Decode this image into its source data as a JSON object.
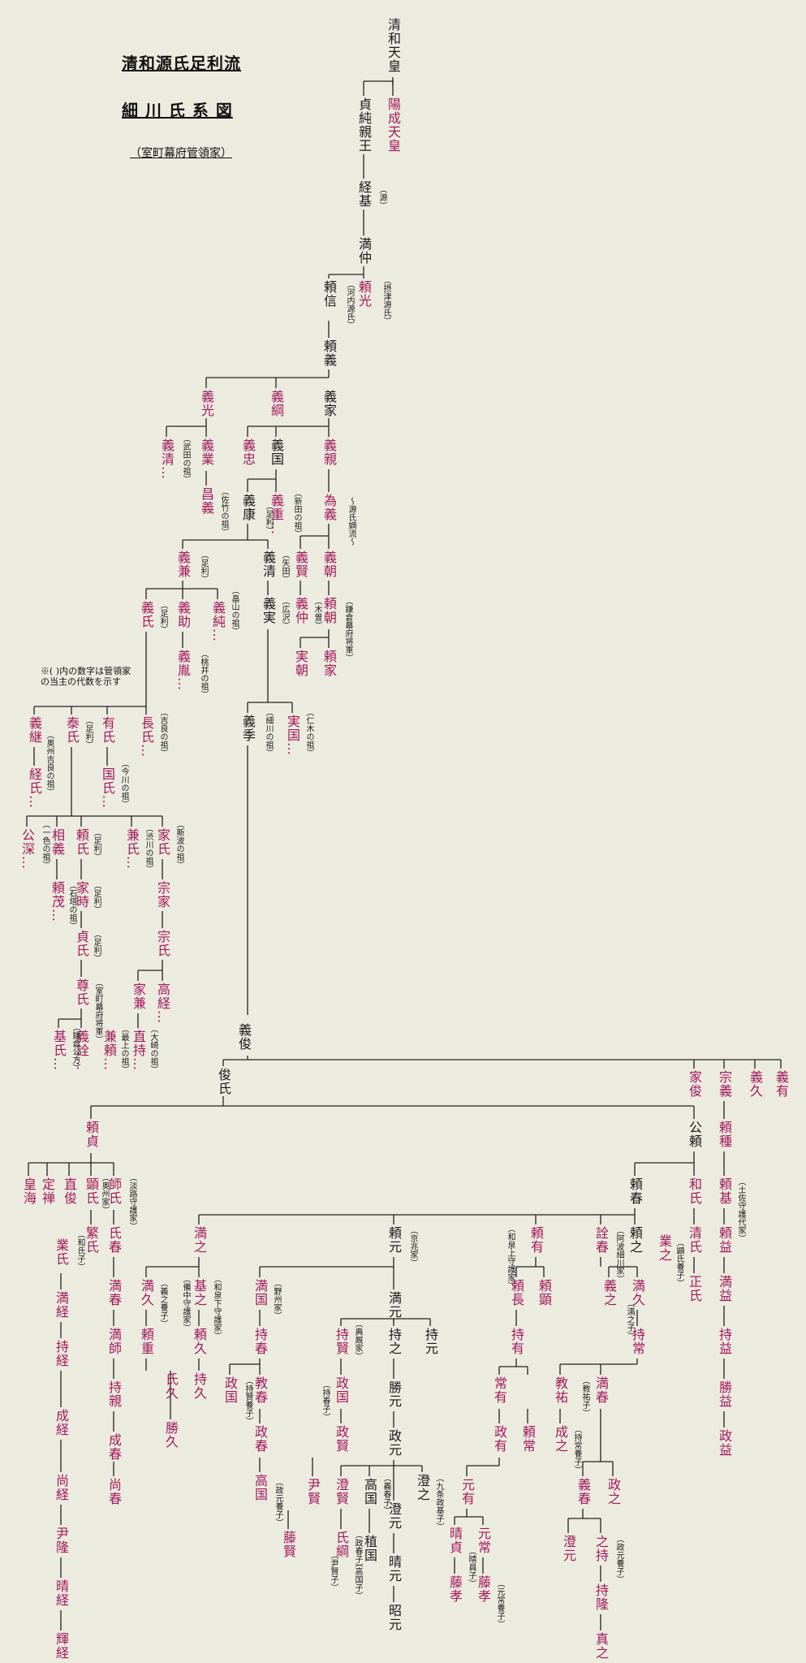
{
  "header": {
    "line1": "清和源氏足利流",
    "line2": "細 川 氏 系 図",
    "line3": "（室町幕府管領家）",
    "note_line1": "※( )内の数字は管領家",
    "note_line2": "の当主の代数を示す"
  },
  "colors": {
    "background": "#ecebdf",
    "line": "#222222",
    "red": "#a3195b",
    "black": "#1a1a1a"
  },
  "nodes": [
    {
      "id": "seiwa",
      "text": "清和天皇",
      "c": "c-main"
    },
    {
      "id": "yozei",
      "text": "陽成天皇",
      "c": "c-red"
    },
    {
      "id": "sadazumi",
      "text": "貞純親王",
      "c": "c-main"
    },
    {
      "id": "tsunemoto",
      "text": "経基",
      "c": "c-main"
    },
    {
      "id": "mitsunaka",
      "text": "満仲",
      "c": "c-main"
    },
    {
      "id": "yorimitsu",
      "text": "頼光",
      "c": "c-red"
    },
    {
      "id": "yorinobu",
      "text": "頼信",
      "c": "c-main"
    },
    {
      "id": "yoriyoshi",
      "text": "頼義",
      "c": "c-main"
    },
    {
      "id": "yoshimitsu",
      "text": "義光",
      "c": "c-red"
    },
    {
      "id": "yoshitsuna",
      "text": "義綱",
      "c": "c-red"
    },
    {
      "id": "yoshiie",
      "text": "義家",
      "c": "c-main"
    },
    {
      "id": "yoshikiyo_t",
      "text": "義清…",
      "c": "c-red"
    },
    {
      "id": "yoshinari",
      "text": "義業",
      "c": "c-red"
    },
    {
      "id": "masayoshi",
      "text": "昌義",
      "c": "c-red"
    },
    {
      "id": "yoshitada",
      "text": "義忠",
      "c": "c-red"
    },
    {
      "id": "yoshikuni",
      "text": "義国",
      "c": "c-main"
    },
    {
      "id": "yoshichika",
      "text": "義親",
      "c": "c-red"
    },
    {
      "id": "tameyoshi",
      "text": "為義",
      "c": "c-red"
    },
    {
      "id": "yoshiyasu",
      "text": "義康",
      "c": "c-main"
    },
    {
      "id": "yoshishige",
      "text": "義重…",
      "c": "c-red"
    },
    {
      "id": "yoshitomo",
      "text": "義朝",
      "c": "c-red"
    },
    {
      "id": "yoshikata",
      "text": "義賢",
      "c": "c-red"
    },
    {
      "id": "yoshikane",
      "text": "義兼",
      "c": "c-red"
    },
    {
      "id": "yoshikiyo",
      "text": "義清",
      "c": "c-main"
    },
    {
      "id": "yoshinaka",
      "text": "義仲",
      "c": "c-red"
    },
    {
      "id": "yoritomo",
      "text": "頼朝",
      "c": "c-red"
    },
    {
      "id": "yoriie",
      "text": "頼家",
      "c": "c-red"
    },
    {
      "id": "sanetomo",
      "text": "実朝",
      "c": "c-red"
    },
    {
      "id": "yoshizane",
      "text": "義実",
      "c": "c-main"
    },
    {
      "id": "yoshiuji",
      "text": "義氏",
      "c": "c-red"
    },
    {
      "id": "yoshisuke",
      "text": "義助",
      "c": "c-red"
    },
    {
      "id": "yoshizumi",
      "text": "義純…",
      "c": "c-red"
    },
    {
      "id": "yoshinori",
      "text": "義胤…",
      "c": "c-red"
    },
    {
      "id": "yoshisue",
      "text": "義季",
      "c": "c-main"
    },
    {
      "id": "sanekuni",
      "text": "実国…",
      "c": "c-red"
    },
    {
      "id": "yoshitsugu",
      "text": "義継",
      "c": "c-red"
    },
    {
      "id": "yasuuji",
      "text": "泰氏",
      "c": "c-red"
    },
    {
      "id": "ariuji",
      "text": "有氏",
      "c": "c-red"
    },
    {
      "id": "osauji",
      "text": "長氏…",
      "c": "c-red"
    },
    {
      "id": "tsuneuji",
      "text": "経氏…",
      "c": "c-red"
    },
    {
      "id": "kuniuji",
      "text": "国氏…",
      "c": "c-red"
    },
    {
      "id": "kofuka",
      "text": "公深…",
      "c": "c-red"
    },
    {
      "id": "tomoyoshi",
      "text": "相義",
      "c": "c-red"
    },
    {
      "id": "yoriuji",
      "text": "頼氏",
      "c": "c-red"
    },
    {
      "id": "kenuji",
      "text": "兼氏…",
      "c": "c-red"
    },
    {
      "id": "ieuji",
      "text": "家氏",
      "c": "c-red"
    },
    {
      "id": "yorishige",
      "text": "頼茂…",
      "c": "c-red"
    },
    {
      "id": "ietoki",
      "text": "家時",
      "c": "c-red"
    },
    {
      "id": "muneie",
      "text": "宗家",
      "c": "c-red"
    },
    {
      "id": "sadauji",
      "text": "貞氏",
      "c": "c-red"
    },
    {
      "id": "muneuji",
      "text": "宗氏",
      "c": "c-red"
    },
    {
      "id": "takauji",
      "text": "尊氏",
      "c": "c-red"
    },
    {
      "id": "ieyoshi",
      "text": "家兼",
      "c": "c-red"
    },
    {
      "id": "takatsune",
      "text": "高経…",
      "c": "c-red"
    },
    {
      "id": "motouji",
      "text": "基氏…",
      "c": "c-red"
    },
    {
      "id": "yoshiakira",
      "text": "義詮…",
      "c": "c-red"
    },
    {
      "id": "kaneyori",
      "text": "兼頼…",
      "c": "c-red"
    },
    {
      "id": "naomochi",
      "text": "直持…",
      "c": "c-red"
    },
    {
      "id": "yoshitoshi",
      "text": "義俊",
      "c": "c-main"
    },
    {
      "id": "toshiuji",
      "text": "俊氏",
      "c": "c-main"
    },
    {
      "id": "ietoshi",
      "text": "家俊",
      "c": "c-red"
    },
    {
      "id": "muneyoshi",
      "text": "宗義",
      "c": "c-red"
    },
    {
      "id": "yoshihisa",
      "text": "義久",
      "c": "c-red"
    },
    {
      "id": "yoshiari",
      "text": "義有",
      "c": "c-red"
    },
    {
      "id": "yorisada",
      "text": "頼貞",
      "c": "c-red"
    },
    {
      "id": "kimiyori",
      "text": "公頼",
      "c": "c-main"
    },
    {
      "id": "yoritane",
      "text": "頼種",
      "c": "c-red"
    },
    {
      "id": "kokai",
      "text": "皇海",
      "c": "c-red"
    },
    {
      "id": "jozen",
      "text": "定禅",
      "c": "c-red"
    },
    {
      "id": "naotoshi",
      "text": "直俊",
      "c": "c-red"
    },
    {
      "id": "akiuji",
      "text": "顕氏",
      "c": "c-red"
    },
    {
      "id": "moroushi",
      "text": "師氏",
      "c": "c-red"
    },
    {
      "id": "yoriharu",
      "text": "頼春",
      "c": "c-main"
    },
    {
      "id": "kazuuji",
      "text": "和氏",
      "c": "c-red"
    },
    {
      "id": "yorimoto_t",
      "text": "頼基",
      "c": "c-red"
    },
    {
      "id": "shigeuji",
      "text": "繁氏",
      "c": "c-red"
    },
    {
      "id": "ujiharu",
      "text": "氏春",
      "c": "c-red"
    },
    {
      "id": "narauji",
      "text": "業氏",
      "c": "c-red"
    },
    {
      "id": "kiyouji",
      "text": "清氏",
      "c": "c-red"
    },
    {
      "id": "masauji",
      "text": "正氏",
      "c": "c-red"
    },
    {
      "id": "yorimasu",
      "text": "頼益",
      "c": "c-red"
    },
    {
      "id": "mitsuyuki",
      "text": "満之",
      "c": "c-red"
    },
    {
      "id": "yorimoto",
      "text": "頼元",
      "c": "c-main"
    },
    {
      "id": "yoriari",
      "text": "頼有",
      "c": "c-red"
    },
    {
      "id": "akiharu",
      "text": "詮春",
      "c": "c-red"
    },
    {
      "id": "yoriyuki",
      "text": "頼之",
      "c": "c-main"
    },
    {
      "id": "gyoshi",
      "text": "業之",
      "c": "c-red"
    },
    {
      "id": "mitsumasu",
      "text": "満益",
      "c": "c-red"
    },
    {
      "id": "mitsuhisa_a",
      "text": "満久",
      "c": "c-red"
    },
    {
      "id": "motoyuki",
      "text": "基之",
      "c": "c-red"
    },
    {
      "id": "mitsukuni",
      "text": "満国",
      "c": "c-red"
    },
    {
      "id": "mitsumoto",
      "text": "満元",
      "c": "c-main"
    },
    {
      "id": "yorinaga",
      "text": "頼長",
      "c": "c-red"
    },
    {
      "id": "yoriaki",
      "text": "頼顕",
      "c": "c-red"
    },
    {
      "id": "yoshiyuki",
      "text": "義之",
      "c": "c-red"
    },
    {
      "id": "mitsuhisa",
      "text": "満久",
      "c": "c-red"
    },
    {
      "id": "mochimasu",
      "text": "持益",
      "c": "c-red"
    },
    {
      "id": "mitsuharu",
      "text": "満春",
      "c": "c-red"
    },
    {
      "id": "mitsutsune",
      "text": "満経",
      "c": "c-red"
    },
    {
      "id": "yorishige2",
      "text": "頼重",
      "c": "c-red"
    },
    {
      "id": "yorihisa",
      "text": "頼久",
      "c": "c-red"
    },
    {
      "id": "mochiharu",
      "text": "持春",
      "c": "c-red"
    },
    {
      "id": "mochikata",
      "text": "持賢",
      "c": "c-red"
    },
    {
      "id": "mochiyuki",
      "text": "持之",
      "c": "c-main"
    },
    {
      "id": "mochimoto",
      "text": "持元",
      "c": "c-main"
    },
    {
      "id": "mochiari",
      "text": "持有",
      "c": "c-red"
    },
    {
      "id": "mochitsune",
      "text": "持常",
      "c": "c-red"
    },
    {
      "id": "katsumasu",
      "text": "勝益",
      "c": "c-red"
    },
    {
      "id": "mitsumoro",
      "text": "満師",
      "c": "c-red"
    },
    {
      "id": "mochitsune2",
      "text": "持経",
      "c": "c-red"
    },
    {
      "id": "ujihisa",
      "text": "氏久",
      "c": "c-red"
    },
    {
      "id": "mochihisa",
      "text": "持久",
      "c": "c-red"
    },
    {
      "id": "norikuni",
      "text": "政国",
      "c": "c-red"
    },
    {
      "id": "noriharu",
      "text": "教春",
      "c": "c-red"
    },
    {
      "id": "katsumoto",
      "text": "勝元",
      "c": "c-main"
    },
    {
      "id": "tsuneari",
      "text": "常有",
      "c": "c-red"
    },
    {
      "id": "norisuke",
      "text": "教祐",
      "c": "c-red"
    },
    {
      "id": "masuyori",
      "text": "政益",
      "c": "c-red"
    },
    {
      "id": "mochichika",
      "text": "持親",
      "c": "c-red"
    },
    {
      "id": "naritsune",
      "text": "成経",
      "c": "c-red"
    },
    {
      "id": "katsuhisa",
      "text": "勝久",
      "c": "c-red"
    },
    {
      "id": "masakuni",
      "text": "政国",
      "c": "c-red"
    },
    {
      "id": "masaharu",
      "text": "政春",
      "c": "c-red"
    },
    {
      "id": "masamoto",
      "text": "政元",
      "c": "c-main"
    },
    {
      "id": "masaari",
      "text": "政有",
      "c": "c-red"
    },
    {
      "id": "yorihisa2",
      "text": "頼常",
      "c": "c-red"
    },
    {
      "id": "shigeyuki",
      "text": "成之",
      "c": "c-red"
    },
    {
      "id": "mitsunaga",
      "text": "満春",
      "c": "c-red"
    },
    {
      "id": "naritsune2",
      "text": "成春",
      "c": "c-red"
    },
    {
      "id": "takakuni",
      "text": "高国",
      "c": "c-red"
    },
    {
      "id": "masakata",
      "text": "政賢",
      "c": "c-red"
    },
    {
      "id": "motoari",
      "text": "元有",
      "c": "c-red"
    },
    {
      "id": "masayuki",
      "text": "政之",
      "c": "c-red"
    },
    {
      "id": "naotsune",
      "text": "尚経",
      "c": "c-red"
    },
    {
      "id": "naoharu",
      "text": "尚春",
      "c": "c-red"
    },
    {
      "id": "koretaka",
      "text": "尹賢",
      "c": "c-red"
    },
    {
      "id": "sumimoto2",
      "text": "澄賢",
      "c": "c-red"
    },
    {
      "id": "takakuni2",
      "text": "高国",
      "c": "c-main"
    },
    {
      "id": "sumiyuki",
      "text": "澄之",
      "c": "c-main"
    },
    {
      "id": "sumimoto",
      "text": "澄元",
      "c": "c-main"
    },
    {
      "id": "harusada",
      "text": "晴貞",
      "c": "c-red"
    },
    {
      "id": "mototsune",
      "text": "元常",
      "c": "c-red"
    },
    {
      "id": "yoshiharu2",
      "text": "義春",
      "c": "c-red"
    },
    {
      "id": "koretaka2",
      "text": "尹隆",
      "c": "c-red"
    },
    {
      "id": "fujikata",
      "text": "藤賢",
      "c": "c-red"
    },
    {
      "id": "ujitsuna",
      "text": "氏綱",
      "c": "c-red"
    },
    {
      "id": "tanekuni",
      "text": "稙国",
      "c": "c-main"
    },
    {
      "id": "harumoto",
      "text": "晴元",
      "c": "c-main"
    },
    {
      "id": "fujitaka",
      "text": "藤孝",
      "c": "c-red"
    },
    {
      "id": "fujitaka2",
      "text": "藤孝",
      "c": "c-red"
    },
    {
      "id": "sumimoto3",
      "text": "澄元",
      "c": "c-red"
    },
    {
      "id": "yukimochi",
      "text": "之持",
      "c": "c-red"
    },
    {
      "id": "harutsune",
      "text": "晴経",
      "c": "c-red"
    },
    {
      "id": "akimoto",
      "text": "昭元",
      "c": "c-main"
    },
    {
      "id": "mochitaka",
      "text": "持隆",
      "c": "c-red"
    },
    {
      "id": "terutsune",
      "text": "輝経",
      "c": "c-red"
    },
    {
      "id": "sanetsura",
      "text": "真之",
      "c": "c-red"
    }
  ],
  "annotations": [
    {
      "id": "a_minamoto",
      "text": "（源）"
    },
    {
      "id": "a_settsu",
      "text": "（摂津源氏）"
    },
    {
      "id": "a_kawachi",
      "text": "（河内源氏）"
    },
    {
      "id": "a_takeda",
      "text": "（武田の祖）"
    },
    {
      "id": "a_satake",
      "text": "（佐竹の祖）"
    },
    {
      "id": "a_nitta",
      "text": "（新田の祖）"
    },
    {
      "id": "a_ashikaga1",
      "text": "（足利）"
    },
    {
      "id": "a_genji",
      "text": "〜源氏嫡流〜"
    },
    {
      "id": "a_ashikaga2",
      "text": "（足利）"
    },
    {
      "id": "a_yata",
      "text": "（矢田）"
    },
    {
      "id": "a_kiso",
      "text": "（木曽）"
    },
    {
      "id": "a_kamakura",
      "text": "（鎌倉幕府将軍）"
    },
    {
      "id": "a_hiroshi",
      "text": "（広沢）"
    },
    {
      "id": "a_hatakeyama",
      "text": "（畠山の祖）"
    },
    {
      "id": "a_ashikaga3",
      "text": "（足利）"
    },
    {
      "id": "a_momoi",
      "text": "（桃井の祖）"
    },
    {
      "id": "a_hosokawa",
      "text": "（細川の祖）"
    },
    {
      "id": "a_niki",
      "text": "（仁木の祖）"
    },
    {
      "id": "a_kira",
      "text": "（吉良の祖）"
    },
    {
      "id": "a_oshu",
      "text": "（奥州吉良の祖）"
    },
    {
      "id": "a_ashikaga4",
      "text": "（足利）"
    },
    {
      "id": "a_imagawa",
      "text": "（今川の祖）"
    },
    {
      "id": "a_isshiki",
      "text": "（一色の祖）"
    },
    {
      "id": "a_ashikaga5",
      "text": "（足利）"
    },
    {
      "id": "a_shibukawa",
      "text": "（渋川の祖）"
    },
    {
      "id": "a_shiba",
      "text": "（斯波の祖）"
    },
    {
      "id": "a_ishito",
      "text": "（石塔の祖）"
    },
    {
      "id": "a_ashikaga6",
      "text": "（足利）"
    },
    {
      "id": "a_ashikaga7",
      "text": "（足利）"
    },
    {
      "id": "a_muromachi",
      "text": "（室町幕府将軍）"
    },
    {
      "id": "a_kamakurakubo",
      "text": "（鎌倉公方）"
    },
    {
      "id": "a_mogami",
      "text": "（最上の祖）"
    },
    {
      "id": "a_osaki",
      "text": "（大崎の祖）"
    },
    {
      "id": "a_oshuke",
      "text": "（奥州家）"
    },
    {
      "id": "a_awajike",
      "text": "（淡路守護家）"
    },
    {
      "id": "a_wakeshi",
      "text": "（和氏子）"
    },
    {
      "id": "a_kyochoke",
      "text": "（京兆家）"
    },
    {
      "id": "a_izumi",
      "text": "（和泉上守護家）"
    },
    {
      "id": "a_awa",
      "text": "（阿波細川家）"
    },
    {
      "id": "a_tosa",
      "text": "（土佐守護代家）"
    },
    {
      "id": "a_akiuji_ko",
      "text": "（顕氏養子）"
    },
    {
      "id": "a_bitchu",
      "text": "（備中守護家）"
    },
    {
      "id": "a_izumishimo",
      "text": "（和泉下守護家）"
    },
    {
      "id": "a_yakushi",
      "text": "（野州家）"
    },
    {
      "id": "a_tenkyu",
      "text": "（典厩家）"
    },
    {
      "id": "a_mitsuyuki_ko",
      "text": "（満之子）"
    },
    {
      "id": "a_yoshiyuki_ko",
      "text": "（義之養子）"
    },
    {
      "id": "a_mochikata_ko",
      "text": "（持賢養子）"
    },
    {
      "id": "a_mochiyuki_ko",
      "text": "（持春子）"
    },
    {
      "id": "a_noriyuki_ko",
      "text": "（教祐子）"
    },
    {
      "id": "a_mochitsune_ko",
      "text": "（持常養子）"
    },
    {
      "id": "a_kujo",
      "text": "（九条政基子）"
    },
    {
      "id": "a_yoshiharu_ko",
      "text": "（義春子）"
    },
    {
      "id": "a_masaharu_ko",
      "text": "（政春子）"
    },
    {
      "id": "a_masamoto_ko",
      "text": "（政元養子）"
    },
    {
      "id": "a_masamoto_ko2",
      "text": "（政元養子）"
    },
    {
      "id": "a_takakuni_ko",
      "text": "（高国子）"
    },
    {
      "id": "a_koretaka_ko",
      "text": "（尹賢子）"
    },
    {
      "id": "a_harusada_ko",
      "text": "（晴員子）"
    },
    {
      "id": "a_mototsune_ko",
      "text": "（元常養子）"
    }
  ]
}
